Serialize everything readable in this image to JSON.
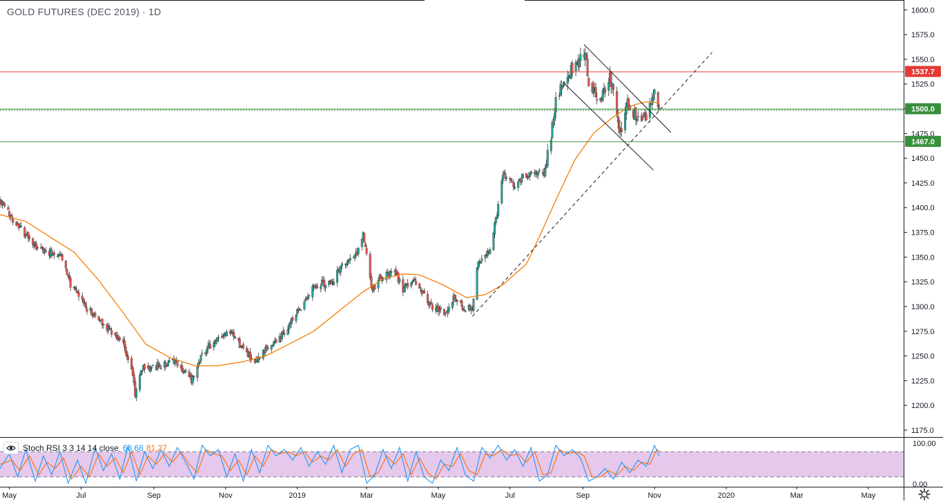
{
  "chart_data": {
    "type": "candlestick",
    "title": "GOLD FUTURES (DEC 2019) · 1D",
    "symbol": "GOLD FUTURES (DEC 2019)",
    "interval": "1D",
    "price_axis": {
      "ylim": [
        1168,
        1610
      ],
      "ticks": [
        1175.0,
        1200.0,
        1225.0,
        1250.0,
        1275.0,
        1300.0,
        1325.0,
        1350.0,
        1375.0,
        1400.0,
        1425.0,
        1450.0,
        1475.0,
        1500.0,
        1525.0,
        1550.0,
        1575.0,
        1600.0
      ],
      "tick_labels": [
        "1175.0",
        "1200.0",
        "1225.0",
        "1250.0",
        "1275.0",
        "1300.0",
        "1325.0",
        "1350.0",
        "1375.0",
        "1400.0",
        "1425.0",
        "1450.0",
        "1475.0",
        "1500.0",
        "1525.0",
        "1550.0",
        "1575.0",
        "1600.0"
      ]
    },
    "time_axis": {
      "range": [
        "2018-04-23",
        "2020-05-31"
      ],
      "ticks": [
        {
          "date": "2018-05-01",
          "label": "May"
        },
        {
          "date": "2018-07-01",
          "label": "Jul"
        },
        {
          "date": "2018-09-01",
          "label": "Sep"
        },
        {
          "date": "2018-11-01",
          "label": "Nov"
        },
        {
          "date": "2019-01-01",
          "label": "2019"
        },
        {
          "date": "2019-03-01",
          "label": "Mar"
        },
        {
          "date": "2019-05-01",
          "label": "May"
        },
        {
          "date": "2019-07-01",
          "label": "Jul"
        },
        {
          "date": "2019-09-01",
          "label": "Sep"
        },
        {
          "date": "2019-11-01",
          "label": "Nov"
        },
        {
          "date": "2020-01-01",
          "label": "2020"
        },
        {
          "date": "2020-03-01",
          "label": "Mar"
        },
        {
          "date": "2020-05-01",
          "label": "May"
        }
      ]
    },
    "close_path": [
      [
        "2018-04-23",
        1407
      ],
      [
        "2018-05-03",
        1390
      ],
      [
        "2018-05-15",
        1372
      ],
      [
        "2018-05-25",
        1358
      ],
      [
        "2018-06-05",
        1355
      ],
      [
        "2018-06-14",
        1353
      ],
      [
        "2018-06-22",
        1322
      ],
      [
        "2018-07-05",
        1300
      ],
      [
        "2018-07-13",
        1290
      ],
      [
        "2018-07-25",
        1278
      ],
      [
        "2018-08-06",
        1262
      ],
      [
        "2018-08-14",
        1232
      ],
      [
        "2018-08-16",
        1212
      ],
      [
        "2018-08-22",
        1238
      ],
      [
        "2018-09-05",
        1240
      ],
      [
        "2018-09-20",
        1244
      ],
      [
        "2018-10-03",
        1226
      ],
      [
        "2018-10-11",
        1251
      ],
      [
        "2018-10-26",
        1268
      ],
      [
        "2018-11-06",
        1272
      ],
      [
        "2018-11-14",
        1260
      ],
      [
        "2018-11-20",
        1252
      ],
      [
        "2018-11-26",
        1240
      ],
      [
        "2018-12-05",
        1256
      ],
      [
        "2018-12-20",
        1272
      ],
      [
        "2019-01-04",
        1300
      ],
      [
        "2019-01-15",
        1322
      ],
      [
        "2019-01-31",
        1325
      ],
      [
        "2019-02-08",
        1342
      ],
      [
        "2019-02-20",
        1352
      ],
      [
        "2019-02-26",
        1373
      ],
      [
        "2019-03-06",
        1315
      ],
      [
        "2019-03-12",
        1328
      ],
      [
        "2019-03-25",
        1335
      ],
      [
        "2019-04-01",
        1318
      ],
      [
        "2019-04-10",
        1327
      ],
      [
        "2019-04-25",
        1300
      ],
      [
        "2019-05-06",
        1293
      ],
      [
        "2019-05-14",
        1308
      ],
      [
        "2019-05-21",
        1300
      ],
      [
        "2019-05-30",
        1297
      ],
      [
        "2019-06-04",
        1345
      ],
      [
        "2019-06-14",
        1358
      ],
      [
        "2019-06-20",
        1395
      ],
      [
        "2019-06-25",
        1435
      ],
      [
        "2019-07-05",
        1420
      ],
      [
        "2019-07-12",
        1432
      ],
      [
        "2019-07-22",
        1438
      ],
      [
        "2019-07-30",
        1435
      ],
      [
        "2019-08-05",
        1470
      ],
      [
        "2019-08-09",
        1512
      ],
      [
        "2019-08-14",
        1520
      ],
      [
        "2019-08-23",
        1540
      ],
      [
        "2019-08-29",
        1550
      ],
      [
        "2019-09-03",
        1560
      ],
      [
        "2019-09-06",
        1525
      ],
      [
        "2019-09-16",
        1510
      ],
      [
        "2019-09-24",
        1535
      ],
      [
        "2019-09-30",
        1495
      ],
      [
        "2019-10-03",
        1475
      ],
      [
        "2019-10-08",
        1505
      ],
      [
        "2019-10-15",
        1495
      ],
      [
        "2019-10-22",
        1488
      ],
      [
        "2019-10-28",
        1500
      ],
      [
        "2019-11-01",
        1515
      ],
      [
        "2019-11-05",
        1496
      ]
    ],
    "moving_average": [
      [
        "2018-04-23",
        1393
      ],
      [
        "2018-05-15",
        1386
      ],
      [
        "2018-06-05",
        1370
      ],
      [
        "2018-06-25",
        1355
      ],
      [
        "2018-07-15",
        1328
      ],
      [
        "2018-08-05",
        1295
      ],
      [
        "2018-08-25",
        1262
      ],
      [
        "2018-09-15",
        1248
      ],
      [
        "2018-10-06",
        1240
      ],
      [
        "2018-10-25",
        1240
      ],
      [
        "2018-11-15",
        1244
      ],
      [
        "2018-12-05",
        1250
      ],
      [
        "2018-12-25",
        1262
      ],
      [
        "2019-01-15",
        1275
      ],
      [
        "2019-02-05",
        1295
      ],
      [
        "2019-02-25",
        1314
      ],
      [
        "2019-03-15",
        1328
      ],
      [
        "2019-04-01",
        1333
      ],
      [
        "2019-04-15",
        1332
      ],
      [
        "2019-05-05",
        1322
      ],
      [
        "2019-05-25",
        1309
      ],
      [
        "2019-06-10",
        1312
      ],
      [
        "2019-06-25",
        1322
      ],
      [
        "2019-07-15",
        1343
      ],
      [
        "2019-07-25",
        1368
      ],
      [
        "2019-08-10",
        1410
      ],
      [
        "2019-08-25",
        1448
      ],
      [
        "2019-09-10",
        1475
      ],
      [
        "2019-09-25",
        1490
      ],
      [
        "2019-10-05",
        1498
      ],
      [
        "2019-10-15",
        1504
      ],
      [
        "2019-10-25",
        1507
      ],
      [
        "2019-11-05",
        1506
      ]
    ],
    "levels": [
      {
        "price": 1537.7,
        "label": "1537.7",
        "color": "#e53935",
        "style": "solid"
      },
      {
        "price": 1500.0,
        "label": "1500.0",
        "color": "#388e3c",
        "style": "solid"
      },
      {
        "price": 1499.0,
        "label": "",
        "color": "#388e3c",
        "style": "dotted"
      },
      {
        "price": 1467.0,
        "label": "1467.0",
        "color": "#388e3c",
        "style": "solid"
      }
    ],
    "trend_lines": [
      {
        "from": [
          "2019-05-30",
          1290
        ],
        "to": [
          "2019-12-20",
          1557
        ],
        "style": "dashed"
      },
      {
        "from": [
          "2019-09-02",
          1565
        ],
        "to": [
          "2019-11-15",
          1476
        ],
        "style": "solid"
      },
      {
        "from": [
          "2019-08-15",
          1527
        ],
        "to": [
          "2019-10-31",
          1438
        ],
        "style": "solid"
      }
    ],
    "indicator": {
      "name": "Stoch RSI 3 3 14 14 close",
      "k": "68.68",
      "d": "81.27",
      "ylim": [
        0,
        100
      ],
      "tick_labels": [
        "100.00",
        "0.00"
      ],
      "bands": [
        80,
        20
      ],
      "k_path": [
        [
          "2018-04-23",
          40
        ],
        [
          "2018-05-01",
          75
        ],
        [
          "2018-05-08",
          20
        ],
        [
          "2018-05-15",
          85
        ],
        [
          "2018-05-23",
          10
        ],
        [
          "2018-05-30",
          70
        ],
        [
          "2018-06-06",
          25
        ],
        [
          "2018-06-13",
          80
        ],
        [
          "2018-06-20",
          5
        ],
        [
          "2018-06-28",
          60
        ],
        [
          "2018-07-05",
          5
        ],
        [
          "2018-07-13",
          90
        ],
        [
          "2018-07-20",
          35
        ],
        [
          "2018-07-27",
          75
        ],
        [
          "2018-08-03",
          15
        ],
        [
          "2018-08-10",
          95
        ],
        [
          "2018-08-17",
          10
        ],
        [
          "2018-08-24",
          80
        ],
        [
          "2018-08-31",
          40
        ],
        [
          "2018-09-07",
          85
        ],
        [
          "2018-09-14",
          45
        ],
        [
          "2018-09-21",
          90
        ],
        [
          "2018-09-28",
          55
        ],
        [
          "2018-10-05",
          15
        ],
        [
          "2018-10-12",
          95
        ],
        [
          "2018-10-19",
          70
        ],
        [
          "2018-10-26",
          85
        ],
        [
          "2018-11-02",
          20
        ],
        [
          "2018-11-09",
          75
        ],
        [
          "2018-11-16",
          10
        ],
        [
          "2018-11-23",
          85
        ],
        [
          "2018-11-30",
          30
        ],
        [
          "2018-12-07",
          95
        ],
        [
          "2018-12-14",
          70
        ],
        [
          "2018-12-21",
          85
        ],
        [
          "2018-12-28",
          60
        ],
        [
          "2019-01-04",
          90
        ],
        [
          "2019-01-11",
          45
        ],
        [
          "2019-01-18",
          80
        ],
        [
          "2019-01-25",
          50
        ],
        [
          "2019-02-01",
          95
        ],
        [
          "2019-02-08",
          30
        ],
        [
          "2019-02-15",
          85
        ],
        [
          "2019-02-22",
          95
        ],
        [
          "2019-03-01",
          5
        ],
        [
          "2019-03-08",
          25
        ],
        [
          "2019-03-15",
          85
        ],
        [
          "2019-03-22",
          40
        ],
        [
          "2019-03-29",
          90
        ],
        [
          "2019-04-05",
          10
        ],
        [
          "2019-04-12",
          80
        ],
        [
          "2019-04-19",
          20
        ],
        [
          "2019-04-26",
          5
        ],
        [
          "2019-05-03",
          60
        ],
        [
          "2019-05-10",
          35
        ],
        [
          "2019-05-17",
          90
        ],
        [
          "2019-05-24",
          25
        ],
        [
          "2019-05-31",
          10
        ],
        [
          "2019-06-07",
          90
        ],
        [
          "2019-06-14",
          65
        ],
        [
          "2019-06-21",
          95
        ],
        [
          "2019-06-28",
          60
        ],
        [
          "2019-07-05",
          85
        ],
        [
          "2019-07-12",
          45
        ],
        [
          "2019-07-19",
          90
        ],
        [
          "2019-07-26",
          10
        ],
        [
          "2019-08-02",
          25
        ],
        [
          "2019-08-09",
          95
        ],
        [
          "2019-08-16",
          70
        ],
        [
          "2019-08-23",
          85
        ],
        [
          "2019-08-30",
          65
        ],
        [
          "2019-09-06",
          10
        ],
        [
          "2019-09-13",
          20
        ],
        [
          "2019-09-20",
          40
        ],
        [
          "2019-09-27",
          15
        ],
        [
          "2019-10-04",
          55
        ],
        [
          "2019-10-11",
          30
        ],
        [
          "2019-10-18",
          60
        ],
        [
          "2019-10-25",
          45
        ],
        [
          "2019-11-01",
          95
        ],
        [
          "2019-11-05",
          69
        ]
      ],
      "d_path": [
        [
          "2018-04-23",
          50
        ],
        [
          "2018-05-03",
          60
        ],
        [
          "2018-05-10",
          35
        ],
        [
          "2018-05-18",
          70
        ],
        [
          "2018-05-26",
          25
        ],
        [
          "2018-06-02",
          55
        ],
        [
          "2018-06-09",
          40
        ],
        [
          "2018-06-16",
          65
        ],
        [
          "2018-06-23",
          15
        ],
        [
          "2018-07-01",
          45
        ],
        [
          "2018-07-08",
          20
        ],
        [
          "2018-07-16",
          75
        ],
        [
          "2018-07-23",
          45
        ],
        [
          "2018-07-30",
          65
        ],
        [
          "2018-08-06",
          30
        ],
        [
          "2018-08-13",
          80
        ],
        [
          "2018-08-20",
          25
        ],
        [
          "2018-08-27",
          70
        ],
        [
          "2018-09-03",
          50
        ],
        [
          "2018-09-10",
          75
        ],
        [
          "2018-09-17",
          55
        ],
        [
          "2018-09-24",
          80
        ],
        [
          "2018-10-01",
          50
        ],
        [
          "2018-10-08",
          30
        ],
        [
          "2018-10-15",
          85
        ],
        [
          "2018-10-22",
          75
        ],
        [
          "2018-10-29",
          70
        ],
        [
          "2018-11-05",
          35
        ],
        [
          "2018-11-12",
          60
        ],
        [
          "2018-11-19",
          25
        ],
        [
          "2018-11-26",
          70
        ],
        [
          "2018-12-03",
          45
        ],
        [
          "2018-12-10",
          85
        ],
        [
          "2018-12-17",
          75
        ],
        [
          "2018-12-24",
          80
        ],
        [
          "2018-12-31",
          70
        ],
        [
          "2019-01-07",
          80
        ],
        [
          "2019-01-14",
          55
        ],
        [
          "2019-01-21",
          70
        ],
        [
          "2019-01-28",
          60
        ],
        [
          "2019-02-04",
          85
        ],
        [
          "2019-02-11",
          45
        ],
        [
          "2019-02-18",
          75
        ],
        [
          "2019-02-25",
          85
        ],
        [
          "2019-03-04",
          20
        ],
        [
          "2019-03-11",
          30
        ],
        [
          "2019-03-18",
          70
        ],
        [
          "2019-03-25",
          50
        ],
        [
          "2019-04-01",
          75
        ],
        [
          "2019-04-08",
          25
        ],
        [
          "2019-04-15",
          65
        ],
        [
          "2019-04-22",
          30
        ],
        [
          "2019-04-29",
          15
        ],
        [
          "2019-05-06",
          50
        ],
        [
          "2019-05-13",
          45
        ],
        [
          "2019-05-20",
          75
        ],
        [
          "2019-05-27",
          35
        ],
        [
          "2019-06-03",
          25
        ],
        [
          "2019-06-10",
          75
        ],
        [
          "2019-06-17",
          70
        ],
        [
          "2019-06-24",
          85
        ],
        [
          "2019-07-01",
          70
        ],
        [
          "2019-07-08",
          75
        ],
        [
          "2019-07-15",
          55
        ],
        [
          "2019-07-22",
          80
        ],
        [
          "2019-07-29",
          25
        ],
        [
          "2019-08-05",
          30
        ],
        [
          "2019-08-12",
          85
        ],
        [
          "2019-08-19",
          75
        ],
        [
          "2019-08-26",
          80
        ],
        [
          "2019-09-02",
          70
        ],
        [
          "2019-09-09",
          20
        ],
        [
          "2019-09-16",
          20
        ],
        [
          "2019-09-23",
          35
        ],
        [
          "2019-09-30",
          25
        ],
        [
          "2019-10-07",
          45
        ],
        [
          "2019-10-14",
          35
        ],
        [
          "2019-10-21",
          55
        ],
        [
          "2019-10-28",
          50
        ],
        [
          "2019-11-03",
          85
        ],
        [
          "2019-11-05",
          81
        ]
      ]
    }
  },
  "colors": {
    "bull": "#26a69a",
    "bear": "#ef5350",
    "ma": "#f57c00",
    "stoch_k": "#2196f3",
    "stoch_d": "#ff6d00",
    "band_fill": "#e1bee7",
    "axis_text": "#131722"
  },
  "icons": {
    "indicator_toggle": "eye-icon",
    "settings": "gear-icon"
  }
}
